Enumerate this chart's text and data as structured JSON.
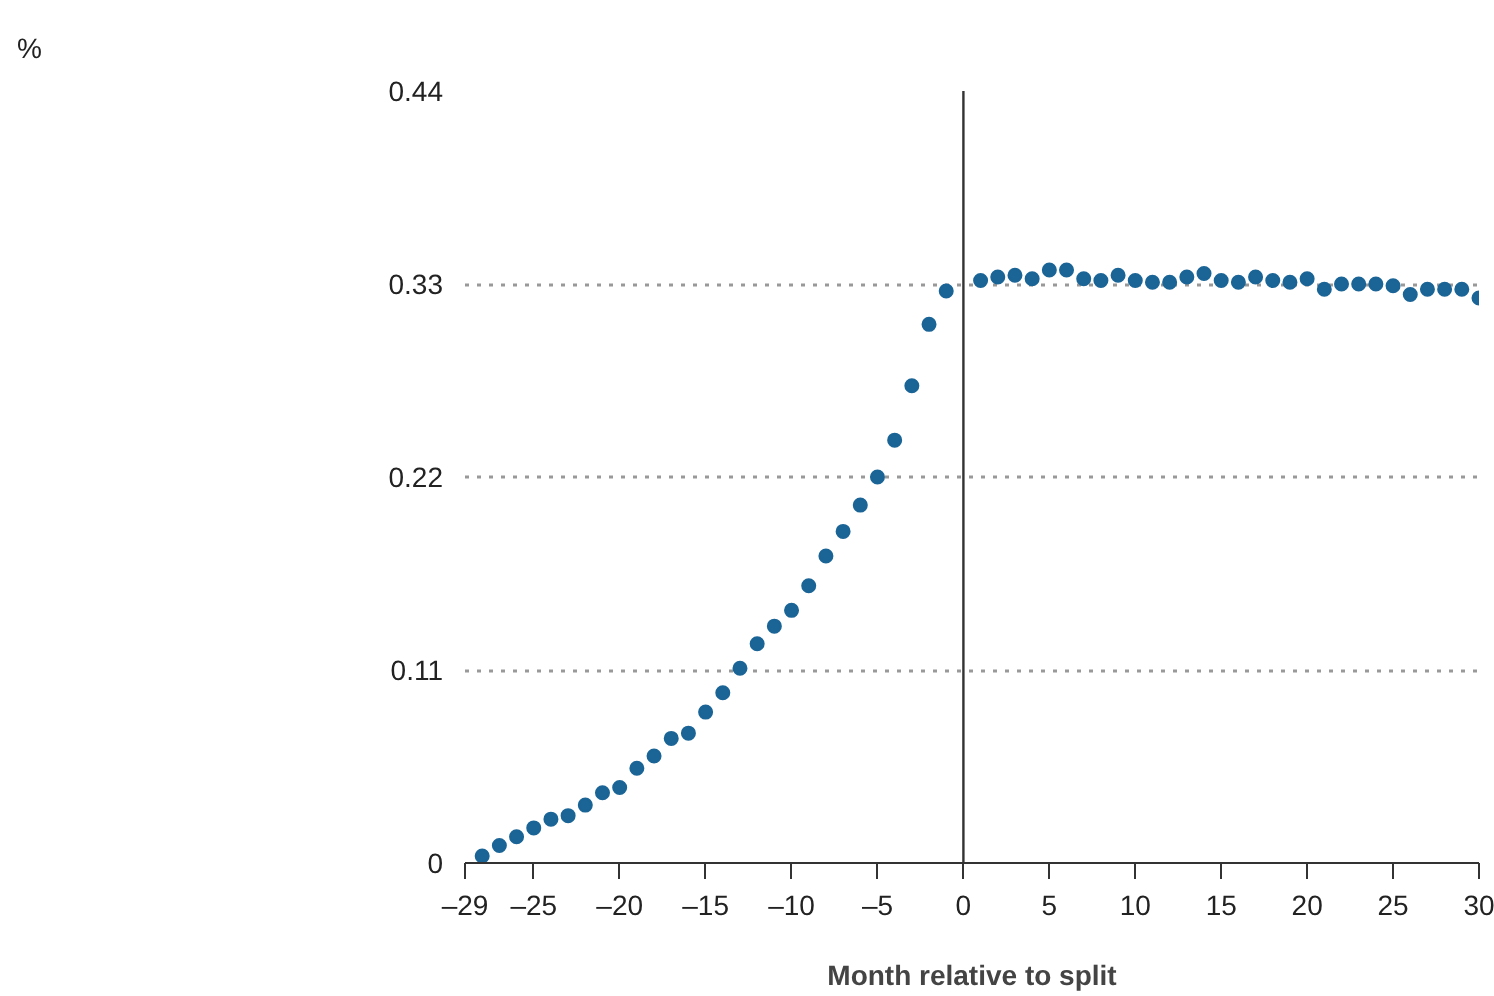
{
  "chart_data": {
    "type": "scatter",
    "xlabel": "Month relative to split",
    "annotations": [
      "%"
    ],
    "x": [
      -28,
      -27,
      -26,
      -25,
      -24,
      -23,
      -22,
      -21,
      -20,
      -19,
      -18,
      -17,
      -16,
      -15,
      -14,
      -13,
      -12,
      -11,
      -10,
      -9,
      -8,
      -7,
      -6,
      -5,
      -4,
      -3,
      -2,
      -1,
      1,
      2,
      3,
      4,
      5,
      6,
      7,
      8,
      9,
      10,
      11,
      12,
      13,
      14,
      15,
      16,
      17,
      18,
      19,
      20,
      21,
      22,
      23,
      24,
      25,
      26,
      27,
      28,
      29,
      30
    ],
    "series": [
      {
        "color": "#1a6496",
        "values": [
          0.004,
          0.01,
          0.015,
          0.02,
          0.025,
          0.027,
          0.033,
          0.04,
          0.043,
          0.054,
          0.061,
          0.071,
          0.074,
          0.086,
          0.097,
          0.111,
          0.125,
          0.135,
          0.144,
          0.158,
          0.175,
          0.189,
          0.204,
          0.22,
          0.241,
          0.272,
          0.307,
          0.326,
          0.332,
          0.334,
          0.335,
          0.333,
          0.338,
          0.338,
          0.333,
          0.332,
          0.335,
          0.332,
          0.331,
          0.331,
          0.334,
          0.336,
          0.332,
          0.331,
          0.334,
          0.332,
          0.331,
          0.333,
          0.327,
          0.33,
          0.33,
          0.33,
          0.329,
          0.324,
          0.327,
          0.327,
          0.327,
          0.322
        ]
      }
    ],
    "xlim": [
      -29,
      30
    ],
    "ylim": [
      0,
      0.44
    ],
    "xticks": [
      {
        "value": -29,
        "label": "–29"
      },
      {
        "value": -25,
        "label": "–25"
      },
      {
        "value": -20,
        "label": "–20"
      },
      {
        "value": -15,
        "label": "–15"
      },
      {
        "value": -10,
        "label": "–10"
      },
      {
        "value": -5,
        "label": "–5"
      },
      0,
      5,
      10,
      15,
      20,
      25,
      30
    ],
    "yticks": [
      0,
      0.11,
      0.22,
      0.33,
      0.44
    ],
    "ref_lines": [
      {
        "axis": "x",
        "value": 0,
        "color": "#333333"
      }
    ],
    "grid": "y",
    "marker": "circle"
  }
}
